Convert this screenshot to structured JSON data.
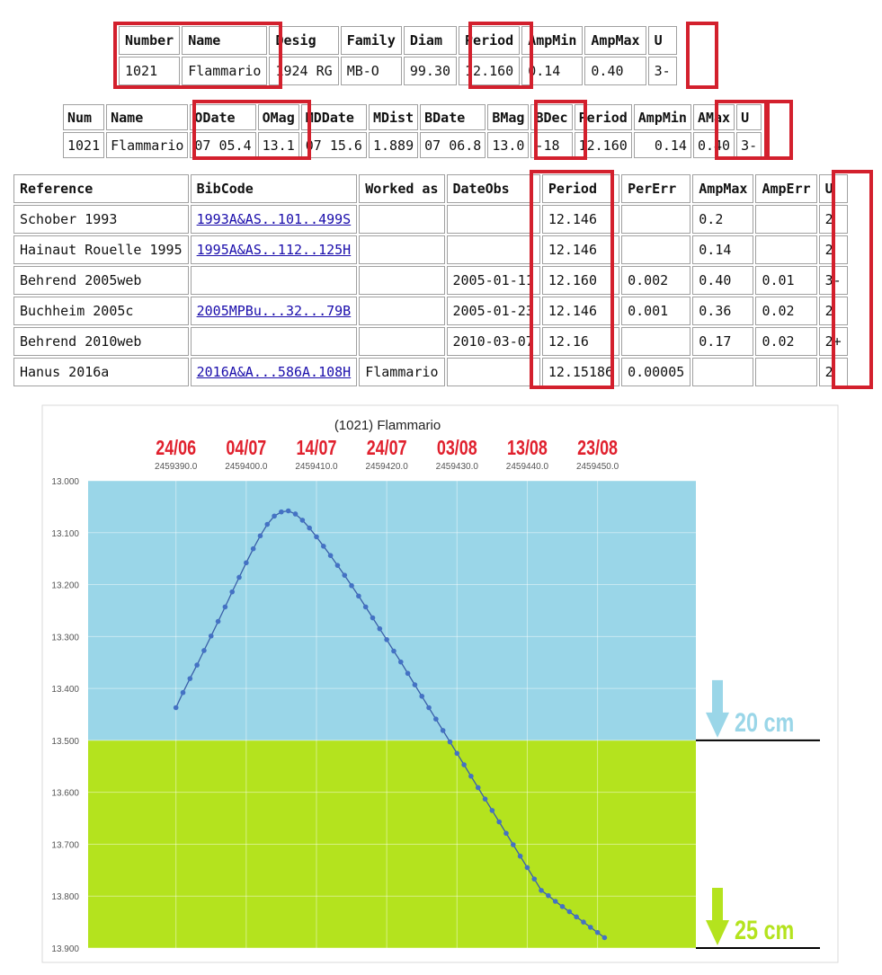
{
  "table1": {
    "headers": [
      "Number",
      "Name",
      "Desig",
      "Family",
      "Diam",
      "Period",
      "AmpMin",
      "AmpMax",
      "U"
    ],
    "row": [
      "1021",
      "Flammario",
      "1924 RG",
      "MB-O",
      "99.30",
      "12.160",
      "0.14",
      "0.40",
      "3-"
    ]
  },
  "table2": {
    "headers": [
      "Num",
      "Name",
      "ODate",
      "OMag",
      "MDDate",
      "MDist",
      "BDate",
      "BMag",
      "BDec",
      "Period",
      "AmpMin",
      "AMax",
      "U"
    ],
    "row": [
      "1021",
      "Flammario",
      "07 05.4",
      "13.1",
      "07 15.6",
      "1.889",
      "07 06.8",
      "13.0",
      "-18",
      "12.160",
      "0.14",
      "0.40",
      "3-"
    ]
  },
  "table3": {
    "headers": [
      "Reference",
      "BibCode",
      "Worked as",
      "DateObs",
      "Period",
      "PerErr",
      "AmpMax",
      "AmpErr",
      "U"
    ],
    "rows": [
      [
        "Schober 1993",
        "1993A&AS..101..499S",
        "",
        "",
        "12.146",
        "",
        "0.2",
        "",
        "2"
      ],
      [
        "Hainaut Rouelle 1995",
        "1995A&AS..112..125H",
        "",
        "",
        "12.146",
        "",
        "0.14",
        "",
        "2"
      ],
      [
        "Behrend 2005web",
        "",
        "",
        "2005-01-11",
        "12.160",
        "0.002",
        "0.40",
        "0.01",
        "3-"
      ],
      [
        "Buchheim 2005c",
        "2005MPBu...32...79B",
        "",
        "2005-01-23",
        "12.146",
        "0.001",
        "0.36",
        "0.02",
        "2"
      ],
      [
        "Behrend 2010web",
        "",
        "",
        "2010-03-07",
        "12.16",
        "",
        "0.17",
        "0.02",
        "2+"
      ],
      [
        "Hanus 2016a",
        "2016A&A...586A.108H",
        "Flammario",
        "",
        "12.15186",
        "0.00005",
        "",
        "",
        "2"
      ]
    ]
  },
  "chart_data": {
    "type": "line",
    "title": "(1021) Flammario",
    "xlim": [
      2459377.5,
      2459464.0
    ],
    "ylim": [
      13.0,
      13.9
    ],
    "y_inverted": true,
    "y_ticks": [
      "13.000",
      "13.100",
      "13.200",
      "13.300",
      "13.400",
      "13.500",
      "13.600",
      "13.700",
      "13.800",
      "13.900"
    ],
    "x_ticks": [
      {
        "jd": 2459390.0,
        "jd_label": "2459390.0",
        "date": "24/06"
      },
      {
        "jd": 2459400.0,
        "jd_label": "2459400.0",
        "date": "04/07"
      },
      {
        "jd": 2459410.0,
        "jd_label": "2459410.0",
        "date": "14/07"
      },
      {
        "jd": 2459420.0,
        "jd_label": "2459420.0",
        "date": "24/07"
      },
      {
        "jd": 2459430.0,
        "jd_label": "2459430.0",
        "date": "03/08"
      },
      {
        "jd": 2459440.0,
        "jd_label": "2459440.0",
        "date": "13/08"
      },
      {
        "jd": 2459450.0,
        "jd_label": "2459450.0",
        "date": "23/08"
      }
    ],
    "grid": true,
    "regions": [
      {
        "from": 13.0,
        "to": 13.5,
        "color": "#9ad6e8"
      },
      {
        "from": 13.5,
        "to": 13.9,
        "color": "#b4e31e"
      }
    ],
    "markers": [
      {
        "value": 13.5,
        "label": "20 cm",
        "color": "#9ad6e8"
      },
      {
        "value": 13.9,
        "label": "25 cm",
        "color": "#b4e31e"
      }
    ],
    "line_color": "#4472c4",
    "series": [
      {
        "x": [
          2459390.0,
          2459391.0,
          2459392.0,
          2459393.0,
          2459394.0,
          2459395.0,
          2459396.0,
          2459397.0,
          2459398.0,
          2459399.0,
          2459400.0,
          2459401.0,
          2459402.0,
          2459403.0,
          2459404.0,
          2459405.0,
          2459406.0,
          2459407.0,
          2459408.0,
          2459409.0,
          2459410.0,
          2459411.0,
          2459412.0,
          2459413.0,
          2459414.0,
          2459415.0,
          2459416.0,
          2459417.0,
          2459418.0,
          2459419.0,
          2459420.0,
          2459421.0,
          2459422.0,
          2459423.0,
          2459424.0,
          2459425.0,
          2459426.0,
          2459427.0,
          2459428.0,
          2459429.0,
          2459430.0,
          2459431.0,
          2459432.0,
          2459433.0,
          2459434.0,
          2459435.0,
          2459436.0,
          2459437.0,
          2459438.0,
          2459439.0,
          2459440.0,
          2459441.0,
          2459442.0,
          2459443.0,
          2459444.0,
          2459445.0,
          2459446.0,
          2459447.0,
          2459448.0,
          2459449.0,
          2459450.0,
          2459451.0
        ],
        "y": [
          13.437,
          13.408,
          13.381,
          13.355,
          13.327,
          13.299,
          13.271,
          13.243,
          13.214,
          13.186,
          13.158,
          13.131,
          13.106,
          13.084,
          13.068,
          13.06,
          13.058,
          13.064,
          13.076,
          13.091,
          13.108,
          13.126,
          13.144,
          13.163,
          13.182,
          13.202,
          13.222,
          13.243,
          13.264,
          13.285,
          13.306,
          13.328,
          13.349,
          13.371,
          13.393,
          13.415,
          13.437,
          13.459,
          13.481,
          13.503,
          13.525,
          13.547,
          13.569,
          13.591,
          13.613,
          13.635,
          13.657,
          13.679,
          13.701,
          13.723,
          13.745,
          13.767,
          13.789,
          13.799,
          13.81,
          13.82,
          13.83,
          13.84,
          13.85,
          13.86,
          13.87,
          13.88
        ]
      }
    ]
  }
}
